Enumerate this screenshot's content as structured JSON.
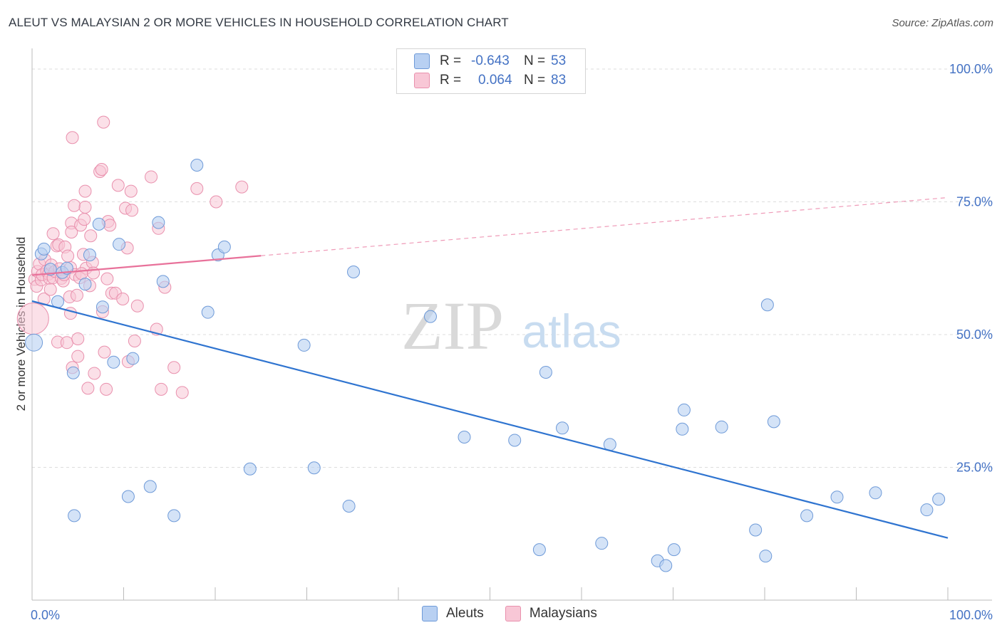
{
  "title": "ALEUT VS MALAYSIAN 2 OR MORE VEHICLES IN HOUSEHOLD CORRELATION CHART",
  "source": "Source: ZipAtlas.com",
  "watermark": {
    "zip": "ZIP",
    "atlas": "atlas"
  },
  "colors": {
    "aleut_fill": "#b8d0f2",
    "aleut_stroke": "#6e9ad8",
    "aleut_line": "#2f74d0",
    "malay_fill": "#f8c7d6",
    "malay_stroke": "#e990ad",
    "malay_line": "#e8719a",
    "value_text": "#4472c4",
    "grid": "#dddddd"
  },
  "legend": {
    "rows": [
      {
        "r_label": "R =",
        "r_value": "-0.643",
        "n_label": "N =",
        "n_value": "53"
      },
      {
        "r_label": "R =",
        "r_value": "0.064",
        "n_label": "N =",
        "n_value": "83"
      }
    ]
  },
  "chart_data": {
    "type": "scatter",
    "title": "ALEUT VS MALAYSIAN 2 OR MORE VEHICLES IN HOUSEHOLD CORRELATION CHART",
    "xlabel": "",
    "ylabel": "2 or more Vehicles in Household",
    "xlim": [
      0,
      100
    ],
    "ylim": [
      0,
      103
    ],
    "x_tick_labels": [
      "0.0%",
      "100.0%"
    ],
    "y_ticks": [
      25,
      50,
      75,
      100
    ],
    "y_tick_labels": [
      "25.0%",
      "50.0%",
      "75.0%",
      "100.0%"
    ],
    "grid": true,
    "series": [
      {
        "name": "Aleuts",
        "r": -0.643,
        "n": 53,
        "trend": {
          "x": [
            0,
            100
          ],
          "y": [
            56.3,
            11.7
          ],
          "dashed_from": null
        },
        "points": [
          [
            0.2,
            48.5
          ],
          [
            1.0,
            65.2
          ],
          [
            1.3,
            66.1
          ],
          [
            2.0,
            62.3
          ],
          [
            2.8,
            56.2
          ],
          [
            3.3,
            61.7
          ],
          [
            3.8,
            62.5
          ],
          [
            4.5,
            42.8
          ],
          [
            4.6,
            15.9
          ],
          [
            5.8,
            59.5
          ],
          [
            6.3,
            65.0
          ],
          [
            7.3,
            70.8
          ],
          [
            7.7,
            55.2
          ],
          [
            8.9,
            44.8
          ],
          [
            9.5,
            67.0
          ],
          [
            10.5,
            19.5
          ],
          [
            11.0,
            45.5
          ],
          [
            12.9,
            21.4
          ],
          [
            13.8,
            71.1
          ],
          [
            14.3,
            60.0
          ],
          [
            15.5,
            15.9
          ],
          [
            18.0,
            81.9
          ],
          [
            19.2,
            54.2
          ],
          [
            20.3,
            65.0
          ],
          [
            21.0,
            66.5
          ],
          [
            23.8,
            24.7
          ],
          [
            29.7,
            48.0
          ],
          [
            30.8,
            24.9
          ],
          [
            34.6,
            17.7
          ],
          [
            35.1,
            61.8
          ],
          [
            43.5,
            53.4
          ],
          [
            47.2,
            30.7
          ],
          [
            52.7,
            30.1
          ],
          [
            55.4,
            9.5
          ],
          [
            56.1,
            42.9
          ],
          [
            57.9,
            32.4
          ],
          [
            62.2,
            10.7
          ],
          [
            63.1,
            29.3
          ],
          [
            68.3,
            7.4
          ],
          [
            69.2,
            6.5
          ],
          [
            70.1,
            9.5
          ],
          [
            71.0,
            32.2
          ],
          [
            71.2,
            35.8
          ],
          [
            75.3,
            32.6
          ],
          [
            79.0,
            13.2
          ],
          [
            80.1,
            8.3
          ],
          [
            80.3,
            55.6
          ],
          [
            81.0,
            33.6
          ],
          [
            84.6,
            15.9
          ],
          [
            87.9,
            19.4
          ],
          [
            92.1,
            20.2
          ],
          [
            97.7,
            17.0
          ],
          [
            99.0,
            19.0
          ]
        ]
      },
      {
        "name": "Malaysians",
        "r": 0.064,
        "n": 83,
        "trend": {
          "x": [
            0,
            100
          ],
          "y": [
            61.2,
            75.8
          ],
          "dashed_from": 25
        },
        "points": [
          [
            0.1,
            53.0
          ],
          [
            0.3,
            60.4
          ],
          [
            0.5,
            59.1
          ],
          [
            0.6,
            61.9
          ],
          [
            0.8,
            63.3
          ],
          [
            1.0,
            60.3
          ],
          [
            1.1,
            61.3
          ],
          [
            1.3,
            56.7
          ],
          [
            1.4,
            64.1
          ],
          [
            1.6,
            62.0
          ],
          [
            1.8,
            61.4
          ],
          [
            1.9,
            60.6
          ],
          [
            2.0,
            58.5
          ],
          [
            2.1,
            63.1
          ],
          [
            2.3,
            69.0
          ],
          [
            2.3,
            60.7
          ],
          [
            2.5,
            61.9
          ],
          [
            2.7,
            66.7
          ],
          [
            2.8,
            48.6
          ],
          [
            2.9,
            66.9
          ],
          [
            3.0,
            62.4
          ],
          [
            3.2,
            60.6
          ],
          [
            3.4,
            60.1
          ],
          [
            3.5,
            61.3
          ],
          [
            3.6,
            66.5
          ],
          [
            3.8,
            48.5
          ],
          [
            3.9,
            64.8
          ],
          [
            4.1,
            57.1
          ],
          [
            4.2,
            62.6
          ],
          [
            4.2,
            54.0
          ],
          [
            4.3,
            71.0
          ],
          [
            4.3,
            69.3
          ],
          [
            4.4,
            43.8
          ],
          [
            4.4,
            87.1
          ],
          [
            4.6,
            74.3
          ],
          [
            4.7,
            61.3
          ],
          [
            4.9,
            57.4
          ],
          [
            5.0,
            49.2
          ],
          [
            5.0,
            45.9
          ],
          [
            5.2,
            60.7
          ],
          [
            5.3,
            70.6
          ],
          [
            5.6,
            65.1
          ],
          [
            5.7,
            71.7
          ],
          [
            5.8,
            74.0
          ],
          [
            5.8,
            77.0
          ],
          [
            5.9,
            62.5
          ],
          [
            6.1,
            39.9
          ],
          [
            6.3,
            59.2
          ],
          [
            6.4,
            68.6
          ],
          [
            6.6,
            63.6
          ],
          [
            6.7,
            61.6
          ],
          [
            6.8,
            42.7
          ],
          [
            7.4,
            80.7
          ],
          [
            7.6,
            81.1
          ],
          [
            7.7,
            54.3
          ],
          [
            7.8,
            90.0
          ],
          [
            7.9,
            46.7
          ],
          [
            8.1,
            39.7
          ],
          [
            8.2,
            60.5
          ],
          [
            8.3,
            71.3
          ],
          [
            8.5,
            70.6
          ],
          [
            8.7,
            57.8
          ],
          [
            9.1,
            57.8
          ],
          [
            9.4,
            78.1
          ],
          [
            9.9,
            56.7
          ],
          [
            10.2,
            73.8
          ],
          [
            10.4,
            66.3
          ],
          [
            10.5,
            44.9
          ],
          [
            10.8,
            77.0
          ],
          [
            10.9,
            73.4
          ],
          [
            11.2,
            48.8
          ],
          [
            11.5,
            55.4
          ],
          [
            13.0,
            79.7
          ],
          [
            13.6,
            51.0
          ],
          [
            13.8,
            70.0
          ],
          [
            14.1,
            39.7
          ],
          [
            14.5,
            58.9
          ],
          [
            15.5,
            43.8
          ],
          [
            16.4,
            39.1
          ],
          [
            18.0,
            77.5
          ],
          [
            20.1,
            75.0
          ],
          [
            22.9,
            77.8
          ],
          [
            5.4,
            61.5
          ]
        ]
      }
    ]
  },
  "bottom_legend": {
    "items": [
      "Aleuts",
      "Malaysians"
    ]
  }
}
